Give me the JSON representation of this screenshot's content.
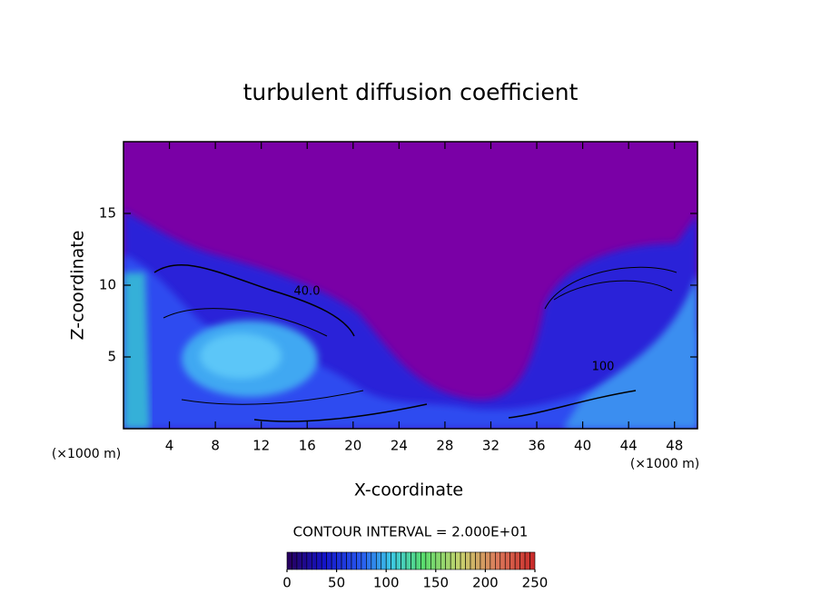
{
  "chart_data": {
    "type": "contour",
    "title": "turbulent diffusion coefficient",
    "x_label": "X-coordinate",
    "y_label": "Z-coordinate",
    "x_unit_label": "(×1000 m)",
    "y_unit_label": "(×1000 m)",
    "xlim": [
      0,
      50
    ],
    "xticks": [
      4,
      8,
      12,
      16,
      20,
      24,
      28,
      32,
      36,
      40,
      44,
      48
    ],
    "ylim": [
      0,
      20
    ],
    "yticks": [
      5,
      10,
      15
    ],
    "contour_labels": [
      {
        "value": 40,
        "label": "40.0"
      },
      {
        "value": 100,
        "label": "100"
      }
    ],
    "contour_interval_label": "CONTOUR INTERVAL = 2.000E+01",
    "colorbar": {
      "lim": [
        0,
        250
      ],
      "ticks": [
        0,
        50,
        100,
        150,
        200,
        250
      ]
    }
  }
}
